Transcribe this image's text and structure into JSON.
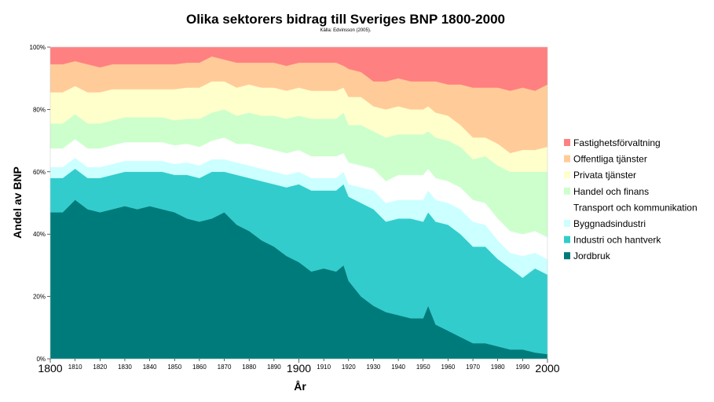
{
  "chart_data": {
    "type": "area",
    "stacked_percent": true,
    "title": "Olika sektorers bidrag till Sveriges BNP 1800-2000",
    "subtitle": "Källa: Edvinsson (2005).",
    "xlabel": "År",
    "ylabel": "Andel av BNP",
    "xlim": [
      1800,
      2000
    ],
    "ylim": [
      0,
      100
    ],
    "y_ticks": [
      "0%",
      "20%",
      "40%",
      "60%",
      "80%",
      "100%"
    ],
    "x_ticks_major": [
      "1800",
      "1900",
      "2000"
    ],
    "x_ticks_minor": [
      "1810",
      "1820",
      "1830",
      "1840",
      "1850",
      "1860",
      "1870",
      "1880",
      "1890",
      "1910",
      "1920",
      "1930",
      "1940",
      "1950",
      "1960",
      "1970",
      "1980",
      "1990"
    ],
    "legend_position": "right",
    "x": [
      1800,
      1805,
      1810,
      1815,
      1820,
      1825,
      1830,
      1835,
      1840,
      1845,
      1850,
      1855,
      1860,
      1865,
      1870,
      1875,
      1880,
      1885,
      1890,
      1895,
      1900,
      1905,
      1910,
      1915,
      1918,
      1920,
      1925,
      1930,
      1935,
      1940,
      1945,
      1950,
      1952,
      1955,
      1960,
      1965,
      1970,
      1975,
      1980,
      1985,
      1990,
      1995,
      2000
    ],
    "series": [
      {
        "name": "Jordbruk",
        "color": "#007b7b",
        "values": [
          47,
          47,
          51,
          48,
          47,
          48,
          49,
          48,
          49,
          48,
          47,
          45,
          44,
          45,
          47,
          43,
          41,
          38,
          36,
          33,
          31,
          28,
          29,
          28,
          30,
          25,
          20,
          17,
          15,
          14,
          13,
          13,
          17,
          11,
          9,
          7,
          5,
          5,
          4,
          3,
          3,
          2,
          1.5
        ]
      },
      {
        "name": "Industri och hantverk",
        "color": "#33cccc",
        "values": [
          11,
          11,
          10,
          10,
          11,
          11,
          11,
          12,
          11,
          12,
          12,
          14,
          14,
          15,
          13,
          16,
          17,
          19,
          20,
          22,
          25,
          26,
          25,
          26,
          26,
          27,
          30,
          31,
          29,
          31,
          32,
          31,
          30,
          33,
          34,
          33,
          31,
          31,
          28,
          26,
          23,
          27,
          25.5
        ]
      },
      {
        "name": "Byggnadsindustri",
        "color": "#ccffff",
        "values": [
          3.5,
          3.5,
          3.5,
          3.5,
          3.5,
          3.5,
          3.5,
          3.5,
          3.5,
          3.5,
          3.5,
          4,
          4,
          4,
          4,
          4,
          4,
          4,
          4,
          4,
          4,
          4,
          4,
          4,
          4,
          4,
          5,
          6,
          6,
          6,
          6,
          7,
          7,
          7,
          7,
          8,
          8,
          7,
          6,
          5,
          7,
          5,
          5
        ]
      },
      {
        "name": "Transport och kommunikation",
        "color": "#ffffff",
        "values": [
          6,
          6,
          6,
          6,
          6,
          6,
          6,
          6,
          6,
          6,
          6,
          6,
          6,
          6,
          7,
          6,
          7,
          7,
          7,
          7,
          7,
          7,
          7,
          7,
          6,
          7,
          7,
          7,
          7,
          8,
          8,
          8,
          7,
          7,
          7,
          7,
          7,
          7,
          7,
          7,
          7,
          7,
          7
        ]
      },
      {
        "name": "Handel och finans",
        "color": "#ccffcc",
        "values": [
          8,
          8,
          8,
          8,
          8,
          8,
          8,
          8,
          8,
          8,
          8,
          8,
          9,
          9,
          9,
          9,
          10,
          10,
          11,
          11,
          11,
          12,
          12,
          12,
          13,
          12,
          13,
          12,
          14,
          13,
          13,
          13,
          12,
          13,
          13,
          13,
          13,
          15,
          17,
          19,
          20,
          19,
          21
        ]
      },
      {
        "name": "Privata tjänster",
        "color": "#ffffcc",
        "values": [
          10,
          10,
          9,
          10,
          10,
          10,
          9,
          9,
          9,
          9,
          10,
          10,
          10,
          10,
          9,
          9,
          9,
          9,
          9,
          9,
          9,
          9,
          9,
          9,
          8,
          9,
          9,
          8,
          9,
          9,
          8,
          8,
          8,
          8,
          8,
          7,
          7,
          6,
          7,
          6,
          7,
          7,
          8
        ]
      },
      {
        "name": "Offentliga tjänster",
        "color": "#ffcc99",
        "values": [
          9,
          9,
          8,
          9,
          8,
          8,
          8,
          8,
          8,
          8,
          8,
          8,
          8,
          8,
          7,
          8,
          7,
          8,
          8,
          8,
          8,
          9,
          9,
          9,
          7,
          9,
          8,
          8,
          9,
          9,
          9,
          9,
          8,
          10,
          10,
          13,
          16,
          16,
          18,
          20,
          20,
          19,
          20
        ]
      },
      {
        "name": "Fastighetsförvaltning",
        "color": "#ff8080",
        "values": [
          5.5,
          5.5,
          4.5,
          5.5,
          6.5,
          5.5,
          5.5,
          5.5,
          5.5,
          5.5,
          5.5,
          5,
          5,
          3,
          4,
          5,
          5,
          5,
          5,
          6,
          5,
          5,
          5,
          5,
          6,
          7,
          8,
          11,
          11,
          10,
          11,
          11,
          11,
          11,
          12,
          12,
          13,
          13,
          13,
          14,
          13,
          14,
          12
        ]
      }
    ]
  }
}
